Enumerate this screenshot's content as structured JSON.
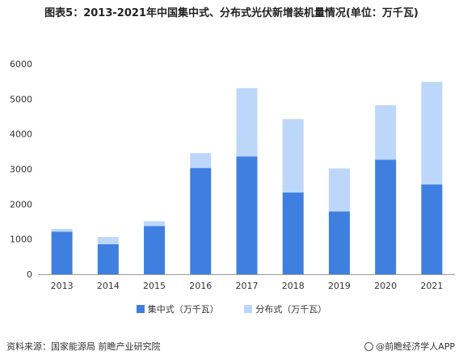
{
  "title": "图表5：2013-2021年中国集中式、分布式光伏新增装机量情况(单位：万千瓦)",
  "source": "资料来源：国家能源局 前瞻产业研究院",
  "brand": "@前瞻经济学人APP",
  "chart_data": {
    "type": "bar",
    "stacked": true,
    "categories": [
      "2013",
      "2014",
      "2015",
      "2016",
      "2017",
      "2018",
      "2019",
      "2020",
      "2021"
    ],
    "series": [
      {
        "name": "集中式（万千瓦）",
        "color": "#3F7FE0",
        "values": [
          1212,
          855,
          1374,
          3031,
          3362,
          2330,
          1791,
          3268,
          2560
        ]
      },
      {
        "name": "分布式（万千瓦）",
        "color": "#BDD7FB",
        "values": [
          80,
          205,
          139,
          424,
          1944,
          2096,
          1226,
          1552,
          2928
        ]
      }
    ],
    "ylim": [
      0,
      6000
    ],
    "yticks": [
      0,
      1000,
      2000,
      3000,
      4000,
      5000,
      6000
    ],
    "grid": false,
    "legend": "bottom"
  }
}
